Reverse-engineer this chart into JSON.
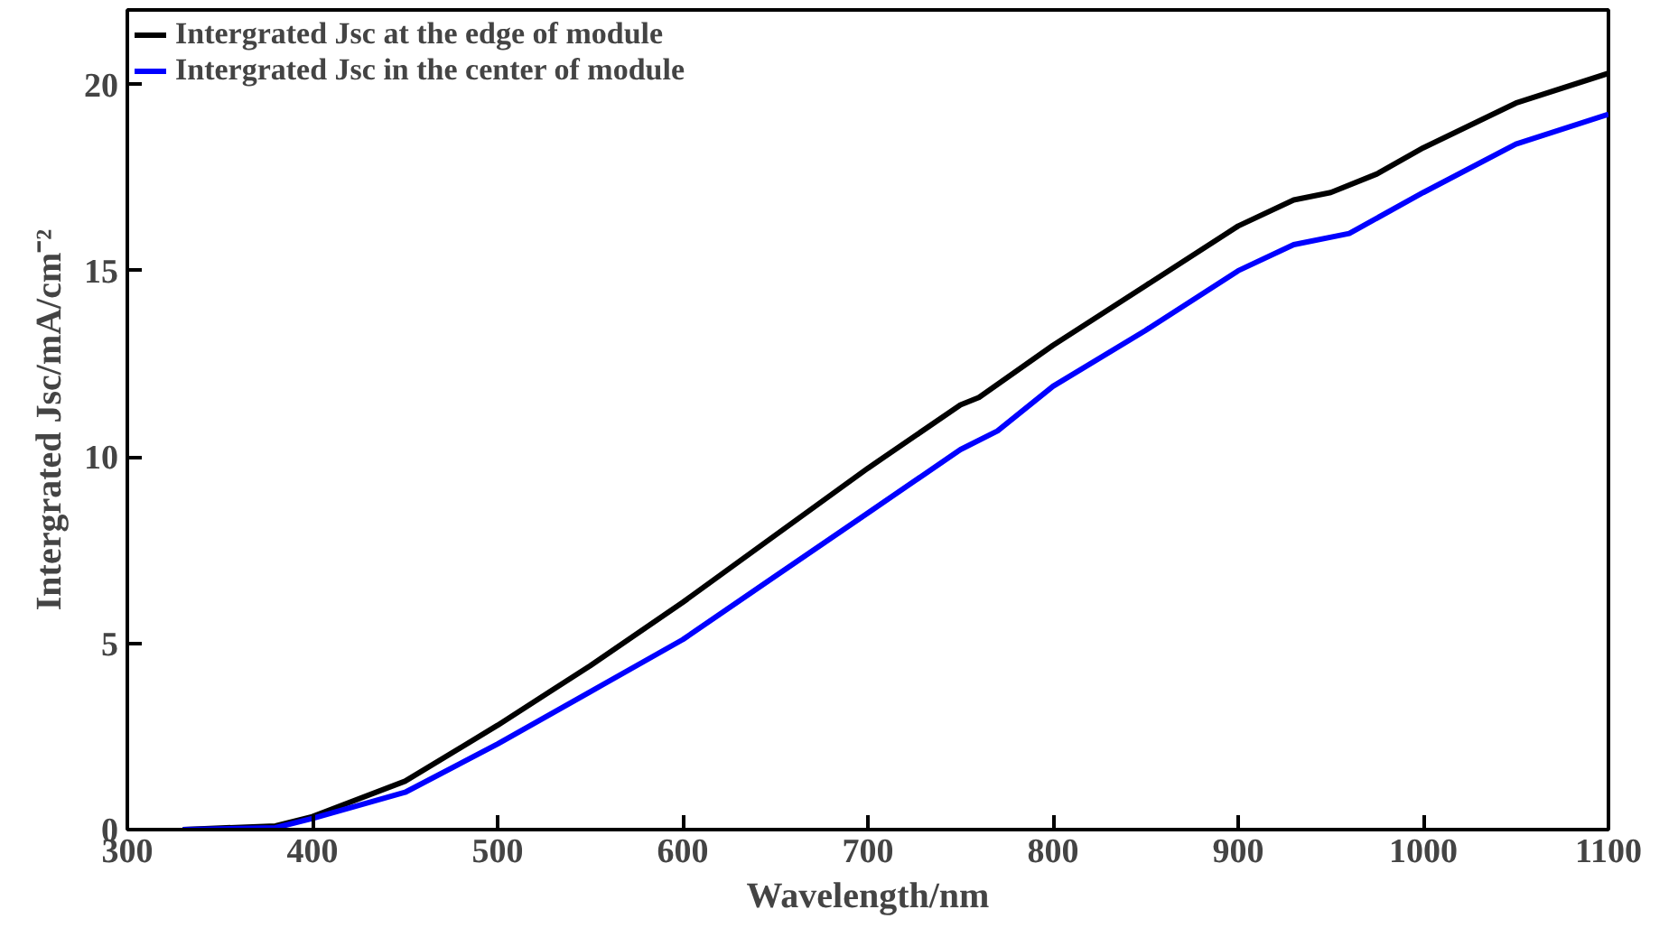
{
  "chart_data": {
    "type": "line",
    "xlabel": "Wavelength/nm",
    "ylabel": "Intergrated Jsc/mA/cm⁻²",
    "xlim": [
      300,
      1100
    ],
    "xticks": [
      300,
      400,
      500,
      600,
      700,
      800,
      900,
      1000,
      1100
    ],
    "ylim": [
      0,
      22
    ],
    "yticks": [
      0,
      5,
      10,
      15,
      20
    ],
    "grid": false,
    "legend": "top left",
    "line_style": "solid",
    "series": [
      {
        "name": "Intergrated Jsc at the edge of module",
        "color": "#000000",
        "x": [
          330,
          380,
          400,
          450,
          500,
          550,
          600,
          650,
          700,
          750,
          760,
          800,
          850,
          900,
          930,
          950,
          975,
          1000,
          1050,
          1100
        ],
        "values": [
          0,
          0.1,
          0.35,
          1.3,
          2.8,
          4.4,
          6.1,
          7.9,
          9.7,
          11.4,
          11.6,
          13.0,
          14.6,
          16.2,
          16.9,
          17.1,
          17.6,
          18.3,
          19.5,
          20.3
        ]
      },
      {
        "name": "Intergrated Jsc in the center of module",
        "color": "#0000ff",
        "x": [
          330,
          380,
          400,
          450,
          500,
          550,
          600,
          650,
          700,
          750,
          770,
          800,
          850,
          900,
          930,
          960,
          1000,
          1050,
          1100
        ],
        "values": [
          0,
          0.05,
          0.3,
          1.0,
          2.3,
          3.7,
          5.1,
          6.8,
          8.5,
          10.2,
          10.7,
          11.9,
          13.4,
          15.0,
          15.7,
          16.0,
          17.1,
          18.4,
          19.2
        ]
      }
    ]
  }
}
